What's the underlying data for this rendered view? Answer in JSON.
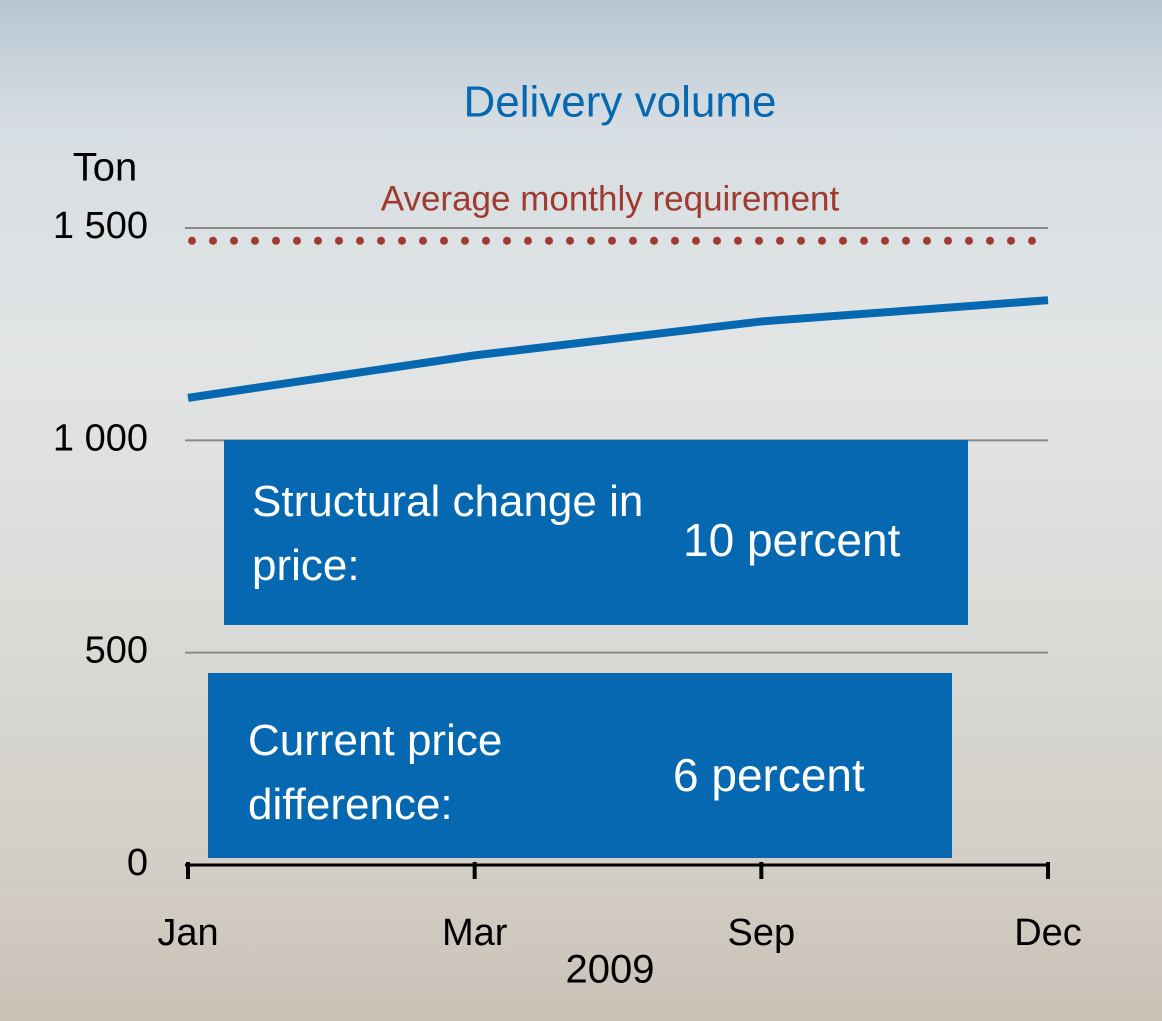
{
  "chart_data": {
    "type": "line",
    "title": "Delivery volume",
    "y_label": "Ton",
    "x_label": "2009",
    "categories": [
      "Jan",
      "Mar",
      "Sep",
      "Dec"
    ],
    "series": [
      {
        "color": "#0568b0",
        "values": [
          1100,
          1200,
          1280,
          1330
        ]
      }
    ],
    "reference_line": {
      "label": "Average monthly requirement",
      "value": 1470,
      "color": "#9e3a2f"
    },
    "ylim": [
      0,
      1500
    ],
    "yticks": [
      0,
      500,
      {
        "value": 1000,
        "label": "1 000"
      },
      {
        "value": 1500,
        "label": "1 500"
      }
    ],
    "grid": true,
    "annotations": [
      {
        "label": "Structural change in price:",
        "value": "10 percent"
      },
      {
        "label": "Current price difference:",
        "value": "6 percent"
      }
    ]
  }
}
